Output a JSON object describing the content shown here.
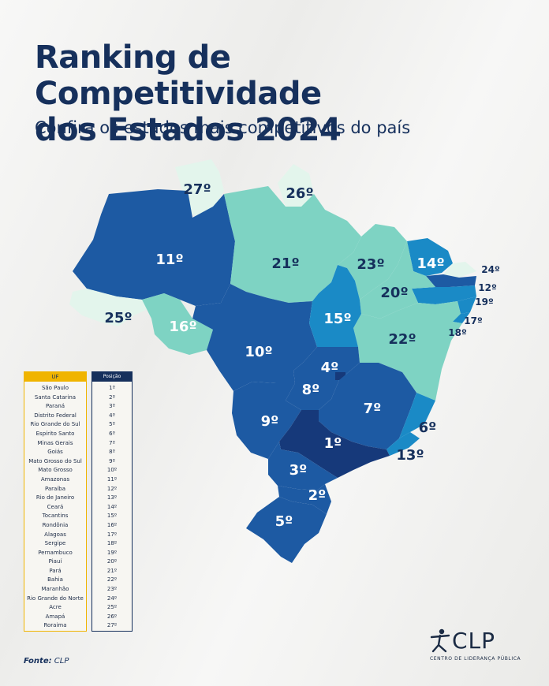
{
  "title_line1": "Ranking de Competitividade",
  "title_line2": "dos Estados 2024",
  "subtitle": "Confira os estados mais competitivos do país",
  "table": {
    "header_uf": "UF",
    "header_pos": "Posição",
    "rows": [
      {
        "uf": "São Paulo",
        "pos": "1º"
      },
      {
        "uf": "Santa Catarina",
        "pos": "2º"
      },
      {
        "uf": "Paraná",
        "pos": "3º"
      },
      {
        "uf": "Distrito Federal",
        "pos": "4º"
      },
      {
        "uf": "Rio Grande do Sul",
        "pos": "5º"
      },
      {
        "uf": "Espírito Santo",
        "pos": "6º"
      },
      {
        "uf": "Minas Gerais",
        "pos": "7º"
      },
      {
        "uf": "Goiás",
        "pos": "8º"
      },
      {
        "uf": "Mato Grosso do Sul",
        "pos": "9º"
      },
      {
        "uf": "Mato Grosso",
        "pos": "10º"
      },
      {
        "uf": "Amazonas",
        "pos": "11º"
      },
      {
        "uf": "Paraíba",
        "pos": "12º"
      },
      {
        "uf": "Rio de Janeiro",
        "pos": "13º"
      },
      {
        "uf": "Ceará",
        "pos": "14º"
      },
      {
        "uf": "Tocantins",
        "pos": "15º"
      },
      {
        "uf": "Rondônia",
        "pos": "16º"
      },
      {
        "uf": "Alagoas",
        "pos": "17º"
      },
      {
        "uf": "Sergipe",
        "pos": "18º"
      },
      {
        "uf": "Pernambuco",
        "pos": "19º"
      },
      {
        "uf": "Piauí",
        "pos": "20º"
      },
      {
        "uf": "Pará",
        "pos": "21º"
      },
      {
        "uf": "Bahia",
        "pos": "22º"
      },
      {
        "uf": "Maranhão",
        "pos": "23º"
      },
      {
        "uf": "Rio Grande do Norte",
        "pos": "24º"
      },
      {
        "uf": "Acre",
        "pos": "25º"
      },
      {
        "uf": "Amapá",
        "pos": "26º"
      },
      {
        "uf": "Roraima",
        "pos": "27º"
      }
    ]
  },
  "map_labels": {
    "rr": "27º",
    "ap": "26º",
    "am": "11º",
    "pa": "21º",
    "ma": "23º",
    "ce": "14º",
    "rn": "24º",
    "pb": "12º",
    "pe": "19º",
    "al": "17º",
    "se": "18º",
    "pi": "20º",
    "ac": "25º",
    "ro": "16º",
    "to": "15º",
    "ba": "22º",
    "mt": "10º",
    "df": "4º",
    "go": "8º",
    "mg": "7º",
    "ms": "9º",
    "es": "6º",
    "sp": "1º",
    "rj": "13º",
    "pr": "3º",
    "sc": "2º",
    "rs": "5º"
  },
  "colors": {
    "rank_top": "#16397a",
    "rank_high": "#1d5aa3",
    "rank_mid": "#1a8ac6",
    "rank_low": "#7ed3c3",
    "rank_bottom": "#e3f5ec",
    "title": "#16305c",
    "uf_header": "#f0b400"
  },
  "source_label": "Fonte:",
  "source_value": "CLP",
  "logo_text": "CLP",
  "logo_subtitle": "CENTRO DE LIDERANÇA PÚBLICA"
}
